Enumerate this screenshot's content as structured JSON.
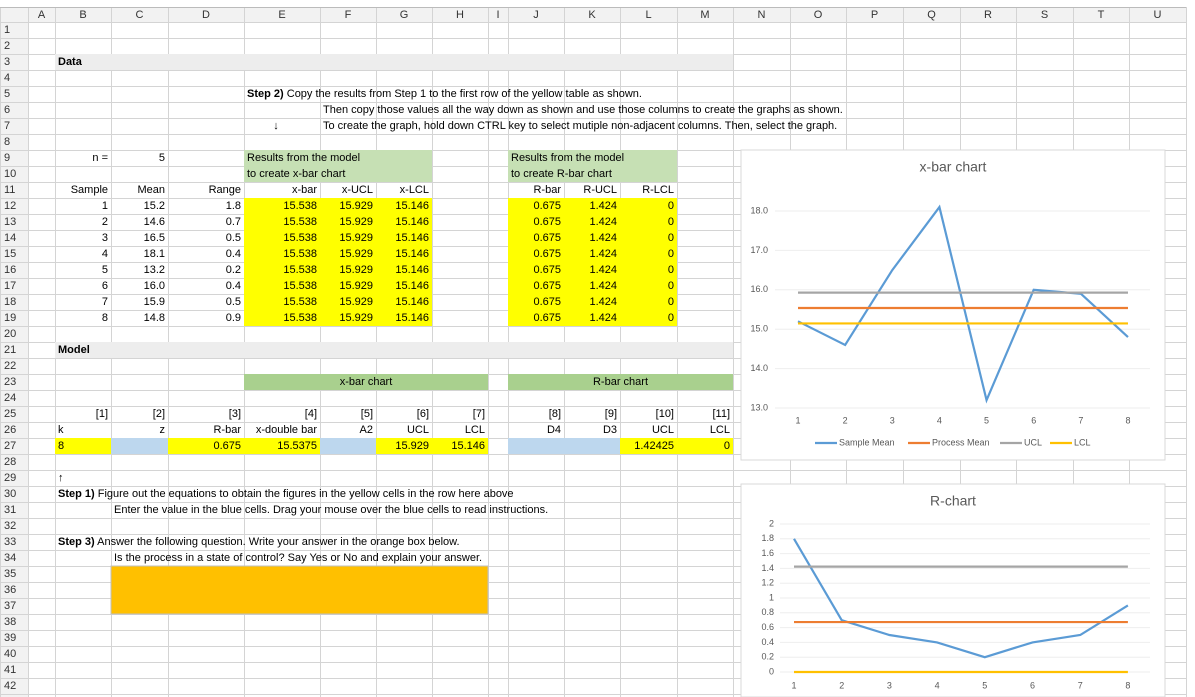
{
  "columns": [
    "A",
    "B",
    "C",
    "D",
    "E",
    "F",
    "G",
    "H",
    "I",
    "J",
    "K",
    "L",
    "M",
    "N",
    "O",
    "P",
    "Q",
    "R",
    "S",
    "T",
    "U"
  ],
  "row_numbers": [
    1,
    2,
    3,
    4,
    5,
    6,
    7,
    8,
    9,
    10,
    11,
    12,
    13,
    14,
    15,
    16,
    17,
    18,
    19,
    20,
    21,
    22,
    23,
    24,
    25,
    26,
    27,
    28,
    29,
    30,
    31,
    32,
    33,
    34,
    35,
    36,
    37,
    38,
    39,
    40,
    41,
    42
  ],
  "cells": {
    "B3": "Data",
    "E5": [
      "Step 2)",
      " Copy the results from Step 1 to the first row of the yellow table as shown."
    ],
    "F6": "Then copy those values all the way down as shown and use those columns to create the graphs as shown.",
    "E7": "↓",
    "F7": "To create the graph, hold down CTRL key to select mutiple non-adjacent columns. Then, select the graph.",
    "B9": "n =",
    "C9": "5",
    "E9": "Results from the model",
    "J9": "Results from the model",
    "E10": "to create x-bar chart",
    "J10": "to create R-bar chart",
    "B11": "Sample",
    "C11": "Mean",
    "D11": "Range",
    "E11": "x-bar",
    "F11": "x-UCL",
    "G11": "x-LCL",
    "J11": "R-bar",
    "K11": "R-UCL",
    "L11": "R-LCL",
    "B12": "1",
    "C12": "15.2",
    "D12": "1.8",
    "E12": "15.538",
    "F12": "15.929",
    "G12": "15.146",
    "J12": "0.675",
    "K12": "1.424",
    "L12": "0",
    "B13": "2",
    "C13": "14.6",
    "D13": "0.7",
    "E13": "15.538",
    "F13": "15.929",
    "G13": "15.146",
    "J13": "0.675",
    "K13": "1.424",
    "L13": "0",
    "B14": "3",
    "C14": "16.5",
    "D14": "0.5",
    "E14": "15.538",
    "F14": "15.929",
    "G14": "15.146",
    "J14": "0.675",
    "K14": "1.424",
    "L14": "0",
    "B15": "4",
    "C15": "18.1",
    "D15": "0.4",
    "E15": "15.538",
    "F15": "15.929",
    "G15": "15.146",
    "J15": "0.675",
    "K15": "1.424",
    "L15": "0",
    "B16": "5",
    "C16": "13.2",
    "D16": "0.2",
    "E16": "15.538",
    "F16": "15.929",
    "G16": "15.146",
    "J16": "0.675",
    "K16": "1.424",
    "L16": "0",
    "B17": "6",
    "C17": "16.0",
    "D17": "0.4",
    "E17": "15.538",
    "F17": "15.929",
    "G17": "15.146",
    "J17": "0.675",
    "K17": "1.424",
    "L17": "0",
    "B18": "7",
    "C18": "15.9",
    "D18": "0.5",
    "E18": "15.538",
    "F18": "15.929",
    "G18": "15.146",
    "J18": "0.675",
    "K18": "1.424",
    "L18": "0",
    "B19": "8",
    "C19": "14.8",
    "D19": "0.9",
    "E19": "15.538",
    "F19": "15.929",
    "G19": "15.146",
    "J19": "0.675",
    "K19": "1.424",
    "L19": "0",
    "B21": "Model",
    "E23": "x-bar chart",
    "J23": "R-bar chart",
    "B25": "[1]",
    "C25": "[2]",
    "D25": "[3]",
    "E25": "[4]",
    "F25": "[5]",
    "G25": "[6]",
    "H25": "[7]",
    "J25": "[8]",
    "K25": "[9]",
    "L25": "[10]",
    "M25": "[11]",
    "B26": "k",
    "C26": "z",
    "D26": "R-bar",
    "E26": "x-double bar",
    "F26": "A2",
    "G26": "UCL",
    "H26": "LCL",
    "J26": "D4",
    "K26": "D3",
    "L26": "UCL",
    "M26": "LCL",
    "B27": "8",
    "D27": "0.675",
    "E27": "15.5375",
    "G27": "15.929",
    "H27": "15.146",
    "L27": "1.42425",
    "M27": "0",
    "B29": "↑",
    "B30": [
      "Step 1)",
      " Figure out the equations to obtain the figures in the yellow cells in the row here above"
    ],
    "C31": "Enter the value in the blue cells. Drag your mouse over the blue cells to read instructions.",
    "B33": [
      "Step 3)",
      " Answer the following question. Write your answer in the orange box below."
    ],
    "C34": "Is the process in a state of control? Say Yes or No and explain your answer."
  },
  "chart_data": [
    {
      "type": "line",
      "title": "x-bar chart",
      "categories": [
        "1",
        "2",
        "3",
        "4",
        "5",
        "6",
        "7",
        "8"
      ],
      "series": [
        {
          "name": "Sample Mean",
          "color": "#5b9bd5",
          "values": [
            15.2,
            14.6,
            16.5,
            18.1,
            13.2,
            16.0,
            15.9,
            14.8
          ]
        },
        {
          "name": "Process Mean",
          "color": "#ed7d31",
          "values": [
            15.538,
            15.538,
            15.538,
            15.538,
            15.538,
            15.538,
            15.538,
            15.538
          ]
        },
        {
          "name": "UCL",
          "color": "#a5a5a5",
          "values": [
            15.929,
            15.929,
            15.929,
            15.929,
            15.929,
            15.929,
            15.929,
            15.929
          ]
        },
        {
          "name": "LCL",
          "color": "#ffc000",
          "values": [
            15.146,
            15.146,
            15.146,
            15.146,
            15.146,
            15.146,
            15.146,
            15.146
          ]
        }
      ],
      "ylim": [
        13,
        18.5
      ],
      "yticks": [
        {
          "value": 13,
          "label": "13.0"
        },
        {
          "value": 14,
          "label": "14.0"
        },
        {
          "value": 15,
          "label": "15.0"
        },
        {
          "value": 16,
          "label": "16.0"
        },
        {
          "value": 17,
          "label": "17.0"
        },
        {
          "value": 18,
          "label": "18.0"
        }
      ],
      "grid": true,
      "legend": "bottom"
    },
    {
      "type": "line",
      "title": "R-chart",
      "categories": [
        "1",
        "2",
        "3",
        "4",
        "5",
        "6",
        "7",
        "8"
      ],
      "series": [
        {
          "color": "#5b9bd5",
          "values": [
            1.8,
            0.7,
            0.5,
            0.4,
            0.2,
            0.4,
            0.5,
            0.9
          ]
        },
        {
          "color": "#ed7d31",
          "values": [
            0.675,
            0.675,
            0.675,
            0.675,
            0.675,
            0.675,
            0.675,
            0.675
          ]
        },
        {
          "color": "#a5a5a5",
          "values": [
            1.424,
            1.424,
            1.424,
            1.424,
            1.424,
            1.424,
            1.424,
            1.424
          ]
        },
        {
          "color": "#ffc000",
          "values": [
            0,
            0,
            0,
            0,
            0,
            0,
            0,
            0
          ]
        }
      ],
      "ylim": [
        0,
        2
      ],
      "yticks": [
        0,
        0.2,
        0.4,
        0.6,
        0.8,
        1,
        1.2,
        1.4,
        1.6,
        1.8,
        2
      ],
      "grid": true
    }
  ]
}
